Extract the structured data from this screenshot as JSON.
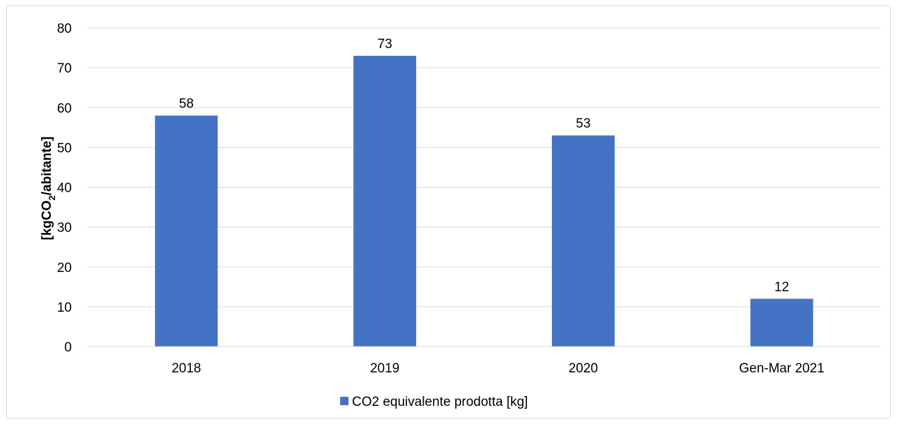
{
  "chart_data": {
    "type": "bar",
    "categories": [
      "2018",
      "2019",
      "2020",
      "Gen-Mar 2021"
    ],
    "series": [
      {
        "name": "CO2 equivalente prodotta [kg]",
        "values": [
          58,
          73,
          53,
          12
        ],
        "labels": [
          "58",
          "73",
          "53",
          "12"
        ],
        "color": "#4472c4"
      }
    ],
    "ylabel": {
      "prefix": "[kgCO",
      "sub": "2",
      "suffix": "/abitante]"
    },
    "ylim": [
      0,
      80
    ],
    "yticks": [
      "0",
      "10",
      "20",
      "30",
      "40",
      "50",
      "60",
      "70",
      "80"
    ],
    "grid": true,
    "gridColor": "#d9d9d9",
    "legend": "bottom"
  }
}
